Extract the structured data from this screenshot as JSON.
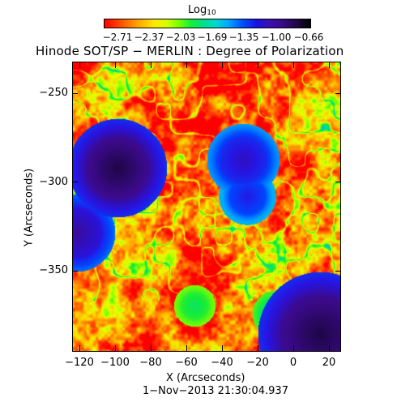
{
  "colorbar": {
    "label_main": "Log",
    "label_sub": "10",
    "ticks": [
      "−2.71",
      "−2.37",
      "−2.03",
      "−1.69",
      "−1.35",
      "−1.00",
      "−0.66"
    ],
    "range": [
      -2.71,
      -0.66
    ]
  },
  "title": "Hinode SOT/SP − MERLIN : Degree of Polarization",
  "axes": {
    "xlabel": "X (Arcseconds)",
    "ylabel": "Y (Arcseconds)",
    "xticks": [
      "−120",
      "−100",
      "−80",
      "−60",
      "−40",
      "−20",
      "0",
      "20"
    ],
    "yticks": [
      "−250",
      "−300",
      "−350"
    ],
    "xrange": [
      -125,
      28
    ],
    "yrange": [
      -397,
      -233
    ]
  },
  "timestamp": "1−Nov−2013 21:30:04.937",
  "colors": {
    "background": "#ffffff",
    "text": "#000000",
    "map_low": "#ff0000",
    "map_high": "#000000"
  }
}
